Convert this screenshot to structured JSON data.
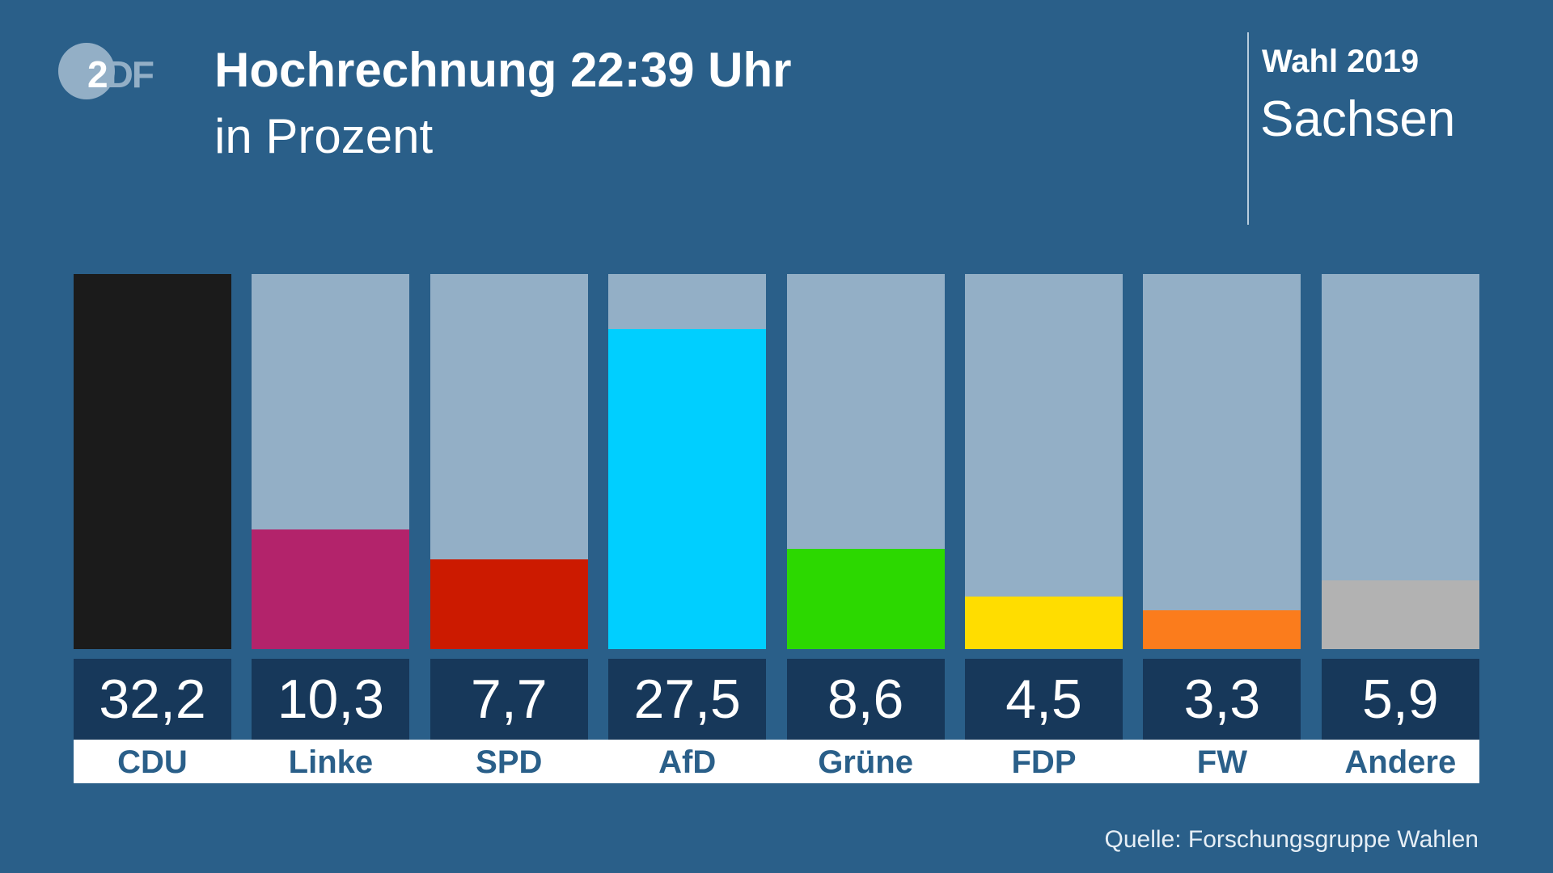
{
  "header": {
    "title": "Hochrechnung 22:39 Uhr",
    "subtitle": "in Prozent",
    "logo": "ZDF",
    "election": "Wahl 2019",
    "region": "Sachsen"
  },
  "source": "Quelle: Forschungsgruppe Wahlen",
  "chart_data": {
    "type": "bar",
    "title": "Hochrechnung 22:39 Uhr",
    "ylabel": "in Prozent",
    "categories": [
      "CDU",
      "Linke",
      "SPD",
      "AfD",
      "Grüne",
      "FDP",
      "FW",
      "Andere"
    ],
    "values": [
      32.2,
      10.3,
      7.7,
      27.5,
      8.6,
      4.5,
      3.3,
      5.9
    ],
    "labels": [
      "32,2",
      "10,3",
      "7,7",
      "27,5",
      "8,6",
      "4,5",
      "3,3",
      "5,9"
    ],
    "colors": [
      "#1b1b1b",
      "#b3236b",
      "#cc1a00",
      "#00cfff",
      "#2cd800",
      "#ffdd00",
      "#fb7c1c",
      "#b2b2b2"
    ],
    "ylim": [
      0,
      32.2
    ]
  }
}
